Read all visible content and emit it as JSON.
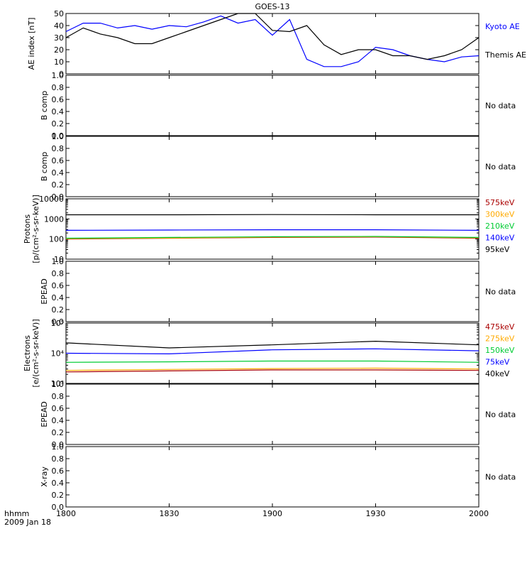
{
  "title": "GOES-13",
  "footer": {
    "time_label": "hhmm",
    "date_label": "2009 Jan 18"
  },
  "x_axis": {
    "range": [
      "1800",
      "2000"
    ],
    "ticks": [
      "1800",
      "1830",
      "1900",
      "1930",
      "2000"
    ]
  },
  "colors": {
    "kyoto": "#0000ff",
    "themis": "#000000",
    "red": "#aa0000",
    "orange": "#ffaa00",
    "green": "#00cc33",
    "blue": "#0000ff",
    "black": "#000000"
  },
  "chart_data": [
    {
      "type": "line",
      "ylabel": "AE index [nT]",
      "ylim": [
        0,
        50
      ],
      "yticks": [
        "0",
        "10",
        "20",
        "30",
        "40",
        "50"
      ],
      "x": [
        "1800",
        "1805",
        "1810",
        "1815",
        "1820",
        "1825",
        "1830",
        "1835",
        "1840",
        "1845",
        "1850",
        "1855",
        "1900",
        "1905",
        "1910",
        "1915",
        "1920",
        "1925",
        "1930",
        "1935",
        "1940",
        "1945",
        "1950",
        "1955",
        "2000"
      ],
      "series": [
        {
          "name": "Kyoto AE",
          "color": "#0000ff",
          "values": [
            35,
            42,
            42,
            38,
            40,
            37,
            40,
            39,
            43,
            48,
            42,
            45,
            32,
            45,
            12,
            6,
            6,
            10,
            22,
            20,
            15,
            12,
            10,
            14,
            15
          ]
        },
        {
          "name": "Themis AE",
          "color": "#000000",
          "values": [
            30,
            38,
            33,
            30,
            25,
            25,
            30,
            35,
            40,
            45,
            50,
            50,
            36,
            35,
            40,
            24,
            16,
            20,
            20,
            15,
            15,
            12,
            15,
            20,
            30
          ]
        }
      ]
    },
    {
      "type": "line",
      "ylabel": "B comp",
      "ylim": [
        0,
        1.0
      ],
      "yticks": [
        "0.0",
        "0.2",
        "0.4",
        "0.6",
        "0.8",
        "1.0"
      ],
      "note": "No data",
      "series": []
    },
    {
      "type": "line",
      "ylabel": "B comp",
      "ylim": [
        0,
        1.0
      ],
      "yticks": [
        "0.0",
        "0.2",
        "0.4",
        "0.6",
        "0.8",
        "1.0"
      ],
      "note": "No data",
      "series": []
    },
    {
      "type": "line",
      "scale": "log",
      "ylabel": "Protons",
      "ylabel2": "[p/(cm²-s-sr-keV)]",
      "ylim": [
        10,
        10000
      ],
      "yticks": [
        "10",
        "100",
        "1000",
        "10000"
      ],
      "x": [
        "1800",
        "1830",
        "1900",
        "1930",
        "2000"
      ],
      "series": [
        {
          "name": "575keV",
          "color": "#aa0000",
          "values": [
            100,
            110,
            120,
            125,
            110
          ]
        },
        {
          "name": "300keV",
          "color": "#ffaa00",
          "values": [
            105,
            112,
            125,
            130,
            115
          ]
        },
        {
          "name": "210keV",
          "color": "#00cc33",
          "values": [
            110,
            120,
            130,
            135,
            120
          ]
        },
        {
          "name": "140keV",
          "color": "#0000ff",
          "values": [
            270,
            280,
            290,
            290,
            270
          ]
        },
        {
          "name": "95keV",
          "color": "#000000",
          "values": [
            1600,
            1600,
            1650,
            1600,
            1600
          ]
        }
      ]
    },
    {
      "type": "line",
      "ylabel": "EPEAD",
      "ylim": [
        0,
        1.0
      ],
      "yticks": [
        "0.0",
        "0.2",
        "0.4",
        "0.6",
        "0.8",
        "1.0"
      ],
      "note": "No data",
      "series": []
    },
    {
      "type": "line",
      "scale": "log",
      "ylabel": "Electrons",
      "ylabel2": "[e/(cm²-s-sr-keV)]",
      "ylim": [
        1000,
        100000
      ],
      "yticks": [
        "10³",
        "10⁴",
        "10⁵"
      ],
      "x": [
        "1800",
        "1830",
        "1900",
        "1930",
        "2000"
      ],
      "series": [
        {
          "name": "475keV",
          "color": "#aa0000",
          "values": [
            2400,
            2600,
            2800,
            2800,
            2700
          ]
        },
        {
          "name": "275keV",
          "color": "#ffaa00",
          "values": [
            2700,
            2900,
            3100,
            3200,
            3000
          ]
        },
        {
          "name": "150keV",
          "color": "#00cc33",
          "values": [
            5000,
            5200,
            5500,
            5500,
            5000
          ]
        },
        {
          "name": "75keV",
          "color": "#0000ff",
          "values": [
            10000,
            9500,
            13000,
            14000,
            12000
          ]
        },
        {
          "name": "40keV",
          "color": "#000000",
          "values": [
            22000,
            15000,
            19000,
            25000,
            19000
          ]
        }
      ]
    },
    {
      "type": "line",
      "ylabel": "EPEAD",
      "ylim": [
        0,
        1.0
      ],
      "yticks": [
        "0.0",
        "0.2",
        "0.4",
        "0.6",
        "0.8",
        "1.0"
      ],
      "note": "No data",
      "series": []
    },
    {
      "type": "line",
      "ylabel": "X-ray",
      "ylim": [
        0,
        1.0
      ],
      "yticks": [
        "0.0",
        "0.2",
        "0.4",
        "0.6",
        "0.8",
        "1.0"
      ],
      "note": "No data",
      "series": []
    }
  ]
}
